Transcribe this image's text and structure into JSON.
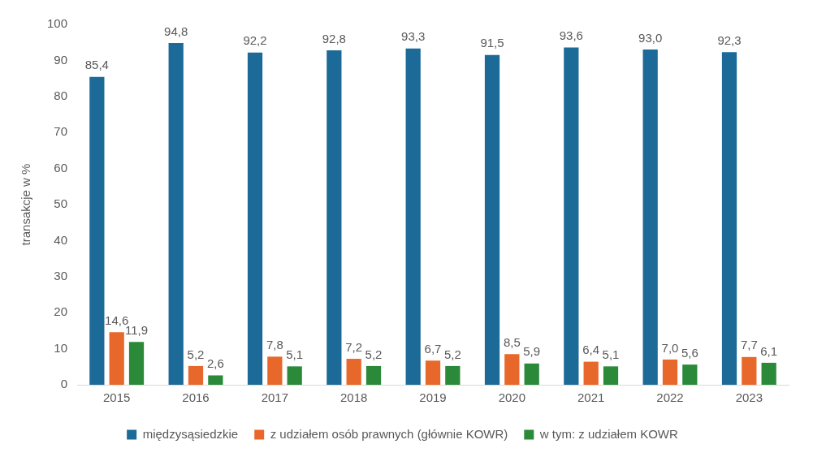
{
  "chart_data": {
    "type": "bar",
    "ylabel": "transakcje w %",
    "categories": [
      "2015",
      "2016",
      "2017",
      "2018",
      "2019",
      "2020",
      "2021",
      "2022",
      "2023"
    ],
    "series": [
      {
        "name": "międzysąsiedzkie",
        "color": "#1b6a98",
        "values": [
          85.4,
          94.8,
          92.2,
          92.8,
          93.3,
          91.5,
          93.6,
          93.0,
          92.3
        ],
        "value_labels": [
          "85,4",
          "94,8",
          "92,2",
          "92,8",
          "93,3",
          "91,5",
          "93,6",
          "93,0",
          "92,3"
        ]
      },
      {
        "name": "z udziałem osób prawnych (głównie KOWR)",
        "color": "#e8672a",
        "values": [
          14.6,
          5.2,
          7.8,
          7.2,
          6.7,
          8.5,
          6.4,
          7.0,
          7.7
        ],
        "value_labels": [
          "14,6",
          "5,2",
          "7,8",
          "7,2",
          "6,7",
          "8,5",
          "6,4",
          "7,0",
          "7,7"
        ]
      },
      {
        "name": "w tym: z udziałem KOWR",
        "color": "#2a8a3a",
        "values": [
          11.9,
          2.6,
          5.1,
          5.2,
          5.2,
          5.9,
          5.1,
          5.6,
          6.1
        ],
        "value_labels": [
          "11,9",
          "2,6",
          "5,1",
          "5,2",
          "5,2",
          "5,9",
          "5,1",
          "5,6",
          "6,1"
        ]
      }
    ],
    "ylim": [
      0,
      100
    ],
    "yticks": [
      0,
      10,
      20,
      30,
      40,
      50,
      60,
      70,
      80,
      90,
      100
    ],
    "grid": false,
    "legend": "bottom"
  }
}
